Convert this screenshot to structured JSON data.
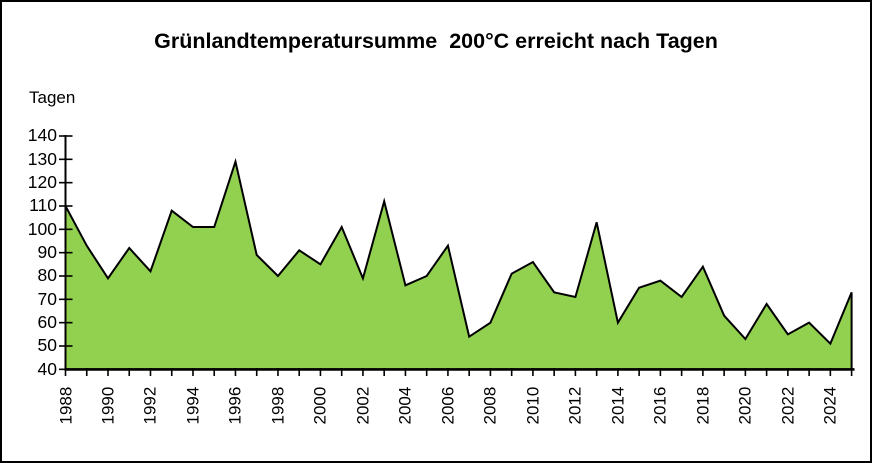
{
  "title": "Grünlandtemperatursumme  200°C erreicht nach Tagen",
  "y_axis_unit": "Tagen",
  "colors": {
    "area_fill": "#92D050",
    "line": "#000000",
    "axis": "#000000",
    "background": "#FFFFFF",
    "frame_border": "#000000"
  },
  "chart_data": {
    "type": "area",
    "title": "Grünlandtemperatursumme  200°C erreicht nach Tagen",
    "xlabel": "",
    "ylabel": "Tagen",
    "ylim": [
      40,
      140
    ],
    "y_ticks": [
      40,
      50,
      60,
      70,
      80,
      90,
      100,
      110,
      120,
      130,
      140
    ],
    "x_labeled_ticks": [
      1988,
      1990,
      1992,
      1994,
      1996,
      1998,
      2000,
      2002,
      2004,
      2006,
      2008,
      2010,
      2012,
      2014,
      2016,
      2018,
      2020,
      2022,
      2024
    ],
    "grid": false,
    "legend": false,
    "x": [
      1988,
      1989,
      1990,
      1991,
      1992,
      1993,
      1994,
      1995,
      1996,
      1997,
      1998,
      1999,
      2000,
      2001,
      2002,
      2003,
      2004,
      2005,
      2006,
      2007,
      2008,
      2009,
      2010,
      2011,
      2012,
      2013,
      2014,
      2015,
      2016,
      2017,
      2018,
      2019,
      2020,
      2021,
      2022,
      2023,
      2024,
      2025
    ],
    "values": [
      110,
      93,
      79,
      92,
      82,
      108,
      101,
      101,
      129,
      89,
      80,
      91,
      85,
      101,
      79,
      112,
      76,
      80,
      93,
      54,
      60,
      81,
      86,
      73,
      71,
      103,
      60,
      75,
      78,
      71,
      84,
      63,
      53,
      68,
      55,
      60,
      51,
      73
    ]
  }
}
